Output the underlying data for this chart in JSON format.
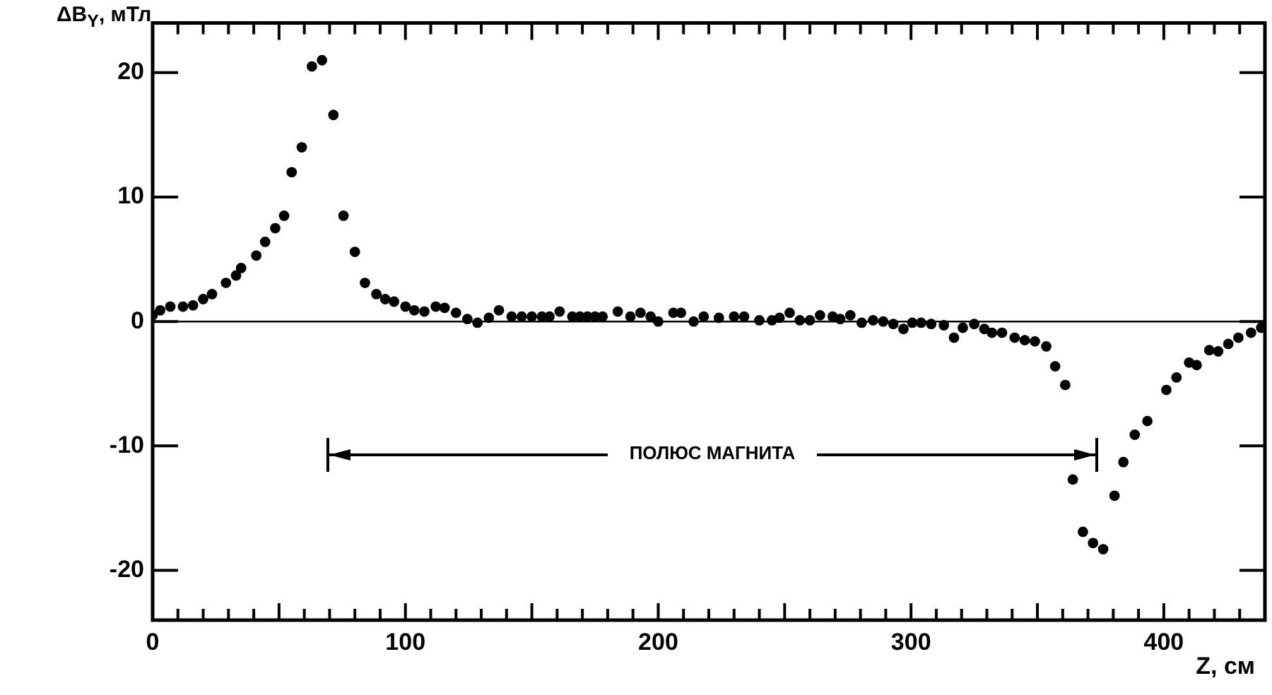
{
  "chart_data": {
    "type": "scatter",
    "xlabel": "Z, см",
    "ylabel": "ΔB$_{Y}$, мТл",
    "xlim": [
      0,
      440
    ],
    "xticks": [
      0,
      {
        "value": 10,
        "label": null
      },
      {
        "value": 20,
        "label": null
      },
      {
        "value": 30,
        "label": null
      },
      {
        "value": 40,
        "label": null
      },
      {
        "value": 50,
        "label": null
      },
      {
        "value": 60,
        "label": null
      },
      {
        "value": 70,
        "label": null
      },
      {
        "value": 80,
        "label": null
      },
      {
        "value": 90,
        "label": null
      },
      100,
      {
        "value": 110,
        "label": null
      },
      {
        "value": 120,
        "label": null
      },
      {
        "value": 130,
        "label": null
      },
      {
        "value": 140,
        "label": null
      },
      {
        "value": 150,
        "label": null
      },
      {
        "value": 160,
        "label": null
      },
      {
        "value": 170,
        "label": null
      },
      {
        "value": 180,
        "label": null
      },
      {
        "value": 190,
        "label": null
      },
      200,
      {
        "value": 210,
        "label": null
      },
      {
        "value": 220,
        "label": null
      },
      {
        "value": 230,
        "label": null
      },
      {
        "value": 240,
        "label": null
      },
      {
        "value": 250,
        "label": null
      },
      {
        "value": 260,
        "label": null
      },
      {
        "value": 270,
        "label": null
      },
      {
        "value": 280,
        "label": null
      },
      {
        "value": 290,
        "label": null
      },
      300,
      {
        "value": 310,
        "label": null
      },
      {
        "value": 320,
        "label": null
      },
      {
        "value": 330,
        "label": null
      },
      {
        "value": 340,
        "label": null
      },
      {
        "value": 350,
        "label": null
      },
      {
        "value": 360,
        "label": null
      },
      {
        "value": 370,
        "label": null
      },
      {
        "value": 380,
        "label": null
      },
      {
        "value": 390,
        "label": null
      },
      400,
      {
        "value": 410,
        "label": null
      },
      {
        "value": 420,
        "label": null
      },
      {
        "value": 430,
        "label": null
      }
    ],
    "ylim": [
      -24,
      24
    ],
    "yticks": [
      -20,
      -10,
      0,
      10,
      20
    ],
    "grid": false,
    "legend": false,
    "marker": "circle",
    "x": [
      0,
      3,
      7,
      12,
      16,
      20,
      23.5,
      29,
      33,
      35,
      41,
      44.5,
      48.5,
      52,
      55,
      59,
      63,
      67,
      71.5,
      75.5,
      80,
      84,
      88.5,
      92,
      95.5,
      100,
      103.5,
      107.5,
      112,
      115.5,
      120,
      124.5,
      128.5,
      133,
      137,
      142,
      146,
      150,
      154,
      157,
      161,
      166,
      169,
      172,
      175,
      178,
      184,
      189,
      193,
      197,
      200,
      206,
      209,
      214,
      218,
      224,
      230,
      234,
      240,
      245,
      248,
      252,
      256,
      260,
      264,
      269,
      272,
      276,
      280.5,
      285,
      289,
      293,
      297,
      300.5,
      304,
      308,
      313,
      317,
      320.5,
      325,
      329,
      332,
      336,
      341,
      345,
      349,
      353.5,
      357,
      361,
      364,
      368,
      372,
      376,
      380.5,
      384,
      388.5,
      393.5,
      401,
      405,
      410,
      413,
      418,
      421.5,
      425.5,
      429.5,
      434.5,
      438.5
    ],
    "series": [
      {
        "color": "#000000",
        "values": [
          0.5,
          0.9,
          1.2,
          1.2,
          1.3,
          1.8,
          2.2,
          3.1,
          3.7,
          4.3,
          5.3,
          6.4,
          7.5,
          8.5,
          12.0,
          14.0,
          20.5,
          21.0,
          16.6,
          8.5,
          5.6,
          3.1,
          2.2,
          1.8,
          1.6,
          1.2,
          0.9,
          0.8,
          1.2,
          1.1,
          0.7,
          0.2,
          -0.1,
          0.3,
          0.9,
          0.4,
          0.4,
          0.4,
          0.4,
          0.4,
          0.8,
          0.4,
          0.4,
          0.4,
          0.4,
          0.4,
          0.8,
          0.4,
          0.7,
          0.4,
          0,
          0.7,
          0.7,
          0,
          0.4,
          0.3,
          0.4,
          0.4,
          0.1,
          0.1,
          0.3,
          0.7,
          0.1,
          0.1,
          0.5,
          0.4,
          0.2,
          0.5,
          -0.1,
          0.1,
          0,
          -0.2,
          -0.6,
          -0.1,
          -0.1,
          -0.2,
          -0.3,
          -1.3,
          -0.5,
          -0.2,
          -0.6,
          -0.9,
          -0.9,
          -1.3,
          -1.5,
          -1.6,
          -2.0,
          -3.6,
          -5.1,
          -12.7,
          -16.9,
          -17.8,
          -18.3,
          -14.0,
          -11.3,
          -9.1,
          -8.0,
          -5.5,
          -4.5,
          -3.3,
          -3.5,
          -2.3,
          -2.4,
          -1.8,
          -1.3,
          -0.9,
          -0.5
        ]
      }
    ],
    "ref_lines": [
      {
        "axis": "y",
        "value": 0,
        "color": "#000000"
      }
    ],
    "annotations": [
      "ПОЛЮС МАГНИТА"
    ]
  }
}
